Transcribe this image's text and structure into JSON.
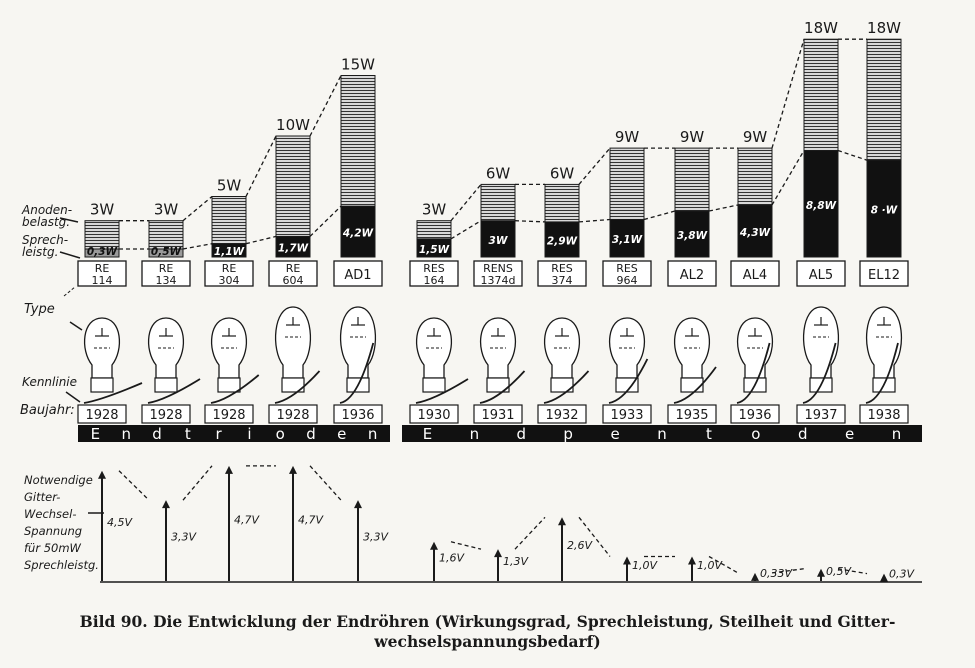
{
  "chart_data": {
    "type": "bar",
    "groups": [
      {
        "name": "Endtrioden",
        "indices": [
          0,
          1,
          2,
          3,
          4
        ]
      },
      {
        "name": "Endpentoden",
        "indices": [
          5,
          6,
          7,
          8,
          9,
          10,
          11,
          12
        ]
      }
    ],
    "categories": [
      "RE 114",
      "RE 134",
      "RE 304",
      "RE 604",
      "AD1",
      "RES 164",
      "RENS 1374d",
      "RES 374",
      "RES 964",
      "AL2",
      "AL4",
      "AL5",
      "EL12"
    ],
    "years": [
      "1928",
      "1928",
      "1928",
      "1928",
      "1936",
      "1930",
      "1931",
      "1932",
      "1933",
      "1935",
      "1936",
      "1937",
      "1938"
    ],
    "series": [
      {
        "name": "Anodenbelastg.",
        "values": [
          3,
          3,
          5,
          10,
          15,
          3,
          6,
          6,
          9,
          9,
          9,
          18,
          18
        ],
        "labels": [
          "3W",
          "3W",
          "5W",
          "10W",
          "15W",
          "3W",
          "6W",
          "6W",
          "9W",
          "9W",
          "9W",
          "18W",
          "18W"
        ]
      },
      {
        "name": "Sprechleistg.",
        "values": [
          0.3,
          0.5,
          1.1,
          1.7,
          4.2,
          1.5,
          3,
          2.9,
          3.1,
          3.8,
          4.3,
          8.8,
          8
        ],
        "labels": [
          "0,3W",
          "0,5W",
          "1,1W",
          "1,7W",
          "4,2W",
          "1,5W",
          "3W",
          "2,9W",
          "3,1W",
          "3,8W",
          "4,3W",
          "8,8W",
          "8 ·W"
        ]
      },
      {
        "name": "Notwendige Gitter-Wechsel-Spannung für 50mW Sprechleistg.",
        "values": [
          4.5,
          3.3,
          4.7,
          4.7,
          3.3,
          1.6,
          1.3,
          2.6,
          1.0,
          1.0,
          0.33,
          0.5,
          0.3
        ],
        "labels": [
          "4,5V",
          "3,3V",
          "4,7V",
          "4,7V",
          "3,3V",
          "1,6V",
          "1,3V",
          "2,6V",
          "1,0V",
          "1,0V",
          "0,33V",
          "0,5V",
          "0,3V"
        ]
      }
    ],
    "row_labels": {
      "anode": [
        "Anoden-",
        "belastg."
      ],
      "sprech": [
        "Sprech-",
        "leistg."
      ],
      "type": "Type",
      "kennlinie": "Kennlinie",
      "baujahr": "Baujahr:",
      "voltage": [
        "Notwendige",
        "Gitter-",
        "Wechsel-",
        "Spannung",
        "für 50mW",
        "Sprechleistg."
      ]
    },
    "band_labels": [
      "Endtrioden",
      "Endpentoden"
    ]
  },
  "caption": [
    "Bild 90. Die Entwicklung der Endröhren (Wirkungsgrad, Sprechleistung, Steilheit und Gitter-",
    "wechselspannungsbedarf)"
  ],
  "colors": {
    "ink": "#1a1a1a",
    "paper": "#f7f6f2"
  }
}
